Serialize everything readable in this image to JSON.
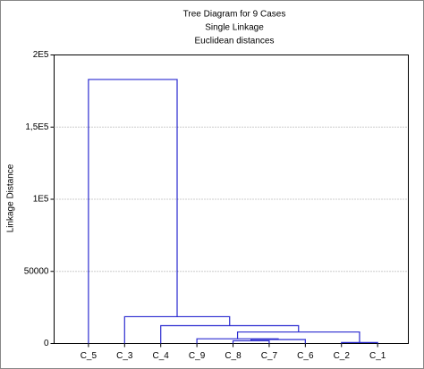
{
  "chart_data": {
    "type": "dendrogram",
    "title": "Tree Diagram for 9 Cases",
    "subtitle": "Single Linkage",
    "subtitle2": "Euclidean distances",
    "y_label": "Linkage Distance",
    "color": "#2b2bd0",
    "grid": true,
    "leaves": [
      "C_5",
      "C_3",
      "C_4",
      "C_9",
      "C_8",
      "C_7",
      "C_6",
      "C_2",
      "C_1"
    ],
    "merges": [
      {
        "a": 7,
        "b": 8,
        "height": 700
      },
      {
        "a": 4,
        "b": 5,
        "height": 1900
      },
      {
        "a": 10,
        "b": 6,
        "height": 2800
      },
      {
        "a": 3,
        "b": 11,
        "height": 3300
      },
      {
        "a": 12,
        "b": 9,
        "height": 8000
      },
      {
        "a": 2,
        "b": 13,
        "height": 12400
      },
      {
        "a": 1,
        "b": 14,
        "height": 18600
      },
      {
        "a": 0,
        "b": 15,
        "height": 183000
      }
    ],
    "ylim": [
      0,
      200000
    ],
    "yticks": [
      0,
      50000,
      {
        "value": 100000,
        "label": "1E5"
      },
      {
        "value": 150000,
        "label": "1,5E5"
      },
      {
        "value": 200000,
        "label": "2E5"
      }
    ]
  }
}
